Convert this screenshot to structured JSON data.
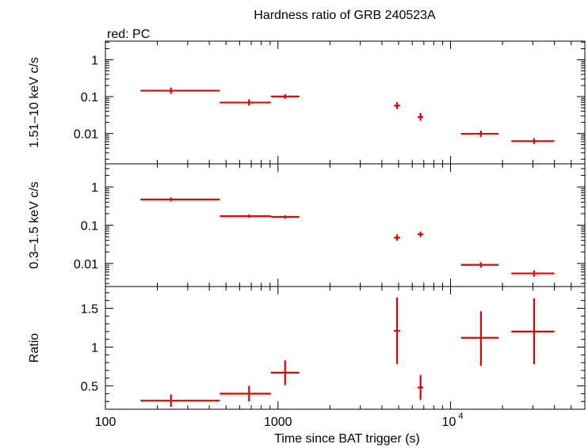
{
  "title": "Hardness ratio of GRB 240523A",
  "legend_note": "red: PC",
  "xlabel": "Time since BAT trigger (s)",
  "x_tick_labels": [
    "100",
    "1000",
    "10",
    "4"
  ],
  "colors": {
    "series": "#e60000",
    "axes": "#000000"
  },
  "chart_data": [
    {
      "type": "scatter",
      "panel": "top",
      "ylabel": "1.51–10 keV c/s",
      "xscale": "log",
      "yscale": "log",
      "xlim": [
        100,
        60000
      ],
      "ylim": [
        0.0015,
        3.2
      ],
      "y_ticks": [
        0.01,
        0.1,
        1
      ],
      "y_tick_labels": [
        "0.01",
        "0.1",
        "1"
      ],
      "series": [
        {
          "points": [
            {
              "x": 240,
              "xlo": 160,
              "xhi": 460,
              "y": 0.145,
              "ylo": 0.12,
              "yhi": 0.175
            },
            {
              "x": 680,
              "xlo": 460,
              "xhi": 910,
              "y": 0.069,
              "ylo": 0.057,
              "yhi": 0.084
            },
            {
              "x": 1100,
              "xlo": 910,
              "xhi": 1330,
              "y": 0.101,
              "ylo": 0.087,
              "yhi": 0.117
            },
            {
              "x": 4900,
              "xlo": 4700,
              "xhi": 5100,
              "y": 0.057,
              "ylo": 0.046,
              "yhi": 0.071
            },
            {
              "x": 6700,
              "xlo": 6450,
              "xhi": 6950,
              "y": 0.028,
              "ylo": 0.022,
              "yhi": 0.036
            },
            {
              "x": 15000,
              "xlo": 11500,
              "xhi": 19000,
              "y": 0.0098,
              "ylo": 0.0081,
              "yhi": 0.0119
            },
            {
              "x": 30500,
              "xlo": 22500,
              "xhi": 40000,
              "y": 0.0062,
              "ylo": 0.0052,
              "yhi": 0.0074
            }
          ]
        }
      ]
    },
    {
      "type": "scatter",
      "panel": "middle",
      "ylabel": "0.3–1.5 keV c/s",
      "xscale": "log",
      "yscale": "log",
      "xlim": [
        100,
        60000
      ],
      "ylim": [
        0.0025,
        4.0
      ],
      "y_ticks": [
        0.01,
        0.1,
        1
      ],
      "y_tick_labels": [
        "0.01",
        "0.1",
        "1"
      ],
      "series": [
        {
          "points": [
            {
              "x": 240,
              "xlo": 160,
              "xhi": 460,
              "y": 0.47,
              "ylo": 0.42,
              "yhi": 0.53
            },
            {
              "x": 680,
              "xlo": 460,
              "xhi": 910,
              "y": 0.172,
              "ylo": 0.155,
              "yhi": 0.19
            },
            {
              "x": 1100,
              "xlo": 910,
              "xhi": 1330,
              "y": 0.165,
              "ylo": 0.148,
              "yhi": 0.182
            },
            {
              "x": 4900,
              "xlo": 4700,
              "xhi": 5100,
              "y": 0.047,
              "ylo": 0.039,
              "yhi": 0.057
            },
            {
              "x": 6700,
              "xlo": 6450,
              "xhi": 6950,
              "y": 0.058,
              "ylo": 0.049,
              "yhi": 0.068
            },
            {
              "x": 15000,
              "xlo": 11500,
              "xhi": 19000,
              "y": 0.0092,
              "ylo": 0.0078,
              "yhi": 0.0108
            },
            {
              "x": 30500,
              "xlo": 22500,
              "xhi": 40000,
              "y": 0.0055,
              "ylo": 0.0045,
              "yhi": 0.0066
            }
          ]
        }
      ]
    },
    {
      "type": "scatter",
      "panel": "bottom",
      "ylabel": "Ratio",
      "xscale": "log",
      "yscale": "linear",
      "xlim": [
        100,
        60000
      ],
      "ylim": [
        0.2,
        1.78
      ],
      "y_ticks": [
        0.5,
        1,
        1.5
      ],
      "y_tick_labels": [
        "0.5",
        "1",
        "1.5"
      ],
      "series": [
        {
          "points": [
            {
              "x": 240,
              "xlo": 160,
              "xhi": 460,
              "y": 0.31,
              "ylo": 0.23,
              "yhi": 0.39
            },
            {
              "x": 680,
              "xlo": 460,
              "xhi": 910,
              "y": 0.4,
              "ylo": 0.3,
              "yhi": 0.5
            },
            {
              "x": 1100,
              "xlo": 910,
              "xhi": 1330,
              "y": 0.67,
              "ylo": 0.51,
              "yhi": 0.83
            },
            {
              "x": 4900,
              "xlo": 4700,
              "xhi": 5100,
              "y": 1.21,
              "ylo": 0.78,
              "yhi": 1.64
            },
            {
              "x": 6700,
              "xlo": 6450,
              "xhi": 6950,
              "y": 0.48,
              "ylo": 0.32,
              "yhi": 0.64
            },
            {
              "x": 15000,
              "xlo": 11500,
              "xhi": 19000,
              "y": 1.12,
              "ylo": 0.76,
              "yhi": 1.46
            },
            {
              "x": 30500,
              "xlo": 22500,
              "xhi": 40000,
              "y": 1.2,
              "ylo": 0.78,
              "yhi": 1.63
            }
          ]
        }
      ]
    }
  ]
}
